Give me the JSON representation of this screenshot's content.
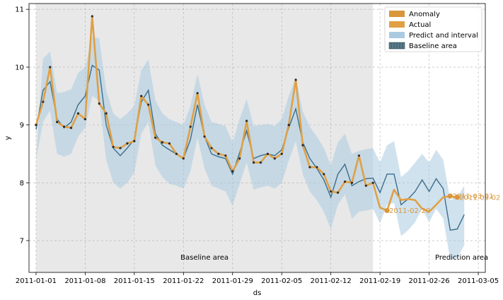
{
  "chart_data": {
    "type": "line",
    "xlabel": "ds",
    "ylabel": "y",
    "x_start": "2011-01-01",
    "xlim": [
      "2010-12-31",
      "2011-03-06"
    ],
    "ylim": [
      6.45,
      11.1
    ],
    "x_ticks": [
      "2011-01-01",
      "2011-01-08",
      "2011-01-15",
      "2011-01-22",
      "2011-01-29",
      "2011-02-05",
      "2011-02-12",
      "2011-02-19",
      "2011-02-26",
      "2011-03-05"
    ],
    "y_ticks": [
      7,
      8,
      9,
      10,
      11
    ],
    "grid": true,
    "legend_position": "top-right",
    "legend": [
      "Anomaly",
      "Actual",
      "Predict and interval",
      "Baseline area"
    ],
    "colors": {
      "anomaly": "#d9963a",
      "actual": "#e0a044",
      "predict": "#3b6f8a",
      "interval": "#a9cbe0",
      "baseline": "#e8e8e8",
      "point": "#2b2b2b"
    },
    "baseline_area": {
      "start": "2011-01-01",
      "end": "2011-02-18",
      "label": "Baseline area"
    },
    "prediction_area": {
      "label": "Prediction area"
    },
    "series": [
      {
        "name": "Actual",
        "x": [
          "2011-01-01",
          "2011-01-02",
          "2011-01-03",
          "2011-01-04",
          "2011-01-05",
          "2011-01-06",
          "2011-01-07",
          "2011-01-08",
          "2011-01-09",
          "2011-01-10",
          "2011-01-11",
          "2011-01-12",
          "2011-01-13",
          "2011-01-14",
          "2011-01-15",
          "2011-01-16",
          "2011-01-17",
          "2011-01-18",
          "2011-01-19",
          "2011-01-20",
          "2011-01-21",
          "2011-01-22",
          "2011-01-23",
          "2011-01-24",
          "2011-01-25",
          "2011-01-26",
          "2011-01-27",
          "2011-01-28",
          "2011-01-29",
          "2011-01-30",
          "2011-01-31",
          "2011-02-01",
          "2011-02-02",
          "2011-02-03",
          "2011-02-04",
          "2011-02-05",
          "2011-02-06",
          "2011-02-07",
          "2011-02-08",
          "2011-02-09",
          "2011-02-10",
          "2011-02-11",
          "2011-02-12",
          "2011-02-13",
          "2011-02-14",
          "2011-02-15",
          "2011-02-16",
          "2011-02-17",
          "2011-02-18",
          "2011-02-19",
          "2011-02-20",
          "2011-02-21",
          "2011-02-22",
          "2011-02-23",
          "2011-02-24",
          "2011-02-25",
          "2011-02-26",
          "2011-02-27",
          "2011-02-28",
          "2011-03-01",
          "2011-03-02"
        ],
        "values": [
          9.0,
          9.4,
          10.0,
          9.05,
          8.97,
          8.95,
          9.2,
          9.1,
          10.88,
          9.37,
          9.2,
          8.62,
          8.6,
          8.68,
          8.72,
          9.5,
          9.35,
          8.78,
          8.7,
          8.68,
          8.5,
          8.42,
          8.97,
          9.55,
          8.8,
          8.6,
          8.5,
          8.47,
          8.2,
          8.42,
          9.07,
          8.35,
          8.35,
          8.5,
          8.42,
          8.5,
          9.0,
          9.78,
          8.65,
          8.27,
          8.27,
          8.15,
          7.85,
          7.83,
          8.02,
          8.0,
          8.47,
          7.95,
          8.0,
          7.57,
          7.52,
          7.88,
          7.7,
          7.72,
          7.7,
          7.55,
          7.5,
          7.62,
          7.75,
          7.77,
          7.75
        ]
      },
      {
        "name": "Predict and interval",
        "x": [
          "2011-01-01",
          "2011-01-02",
          "2011-01-03",
          "2011-01-04",
          "2011-01-05",
          "2011-01-06",
          "2011-01-07",
          "2011-01-08",
          "2011-01-09",
          "2011-01-10",
          "2011-01-11",
          "2011-01-12",
          "2011-01-13",
          "2011-01-14",
          "2011-01-15",
          "2011-01-16",
          "2011-01-17",
          "2011-01-18",
          "2011-01-19",
          "2011-01-20",
          "2011-01-21",
          "2011-01-22",
          "2011-01-23",
          "2011-01-24",
          "2011-01-25",
          "2011-01-26",
          "2011-01-27",
          "2011-01-28",
          "2011-01-29",
          "2011-01-30",
          "2011-01-31",
          "2011-02-01",
          "2011-02-02",
          "2011-02-03",
          "2011-02-04",
          "2011-02-05",
          "2011-02-06",
          "2011-02-07",
          "2011-02-08",
          "2011-02-09",
          "2011-02-10",
          "2011-02-11",
          "2011-02-12",
          "2011-02-13",
          "2011-02-14",
          "2011-02-15",
          "2011-02-16",
          "2011-02-17",
          "2011-02-18",
          "2011-02-19",
          "2011-02-20",
          "2011-02-21",
          "2011-02-22",
          "2011-02-23",
          "2011-02-24",
          "2011-02-25",
          "2011-02-26",
          "2011-02-27",
          "2011-02-28",
          "2011-03-01",
          "2011-03-02",
          "2011-03-03"
        ],
        "values": [
          8.92,
          9.6,
          9.75,
          9.1,
          8.95,
          9.05,
          9.35,
          9.5,
          10.03,
          9.95,
          9.0,
          8.6,
          8.47,
          8.6,
          8.75,
          9.4,
          9.6,
          8.85,
          8.65,
          8.57,
          8.5,
          8.42,
          8.75,
          9.35,
          8.8,
          8.5,
          8.45,
          8.42,
          8.15,
          8.52,
          8.9,
          8.42,
          8.47,
          8.5,
          8.47,
          8.57,
          8.95,
          9.28,
          8.7,
          8.42,
          8.25,
          8.05,
          7.75,
          8.15,
          8.32,
          7.95,
          8.02,
          8.07,
          8.08,
          7.83,
          8.15,
          8.15,
          7.62,
          7.72,
          7.85,
          8.05,
          7.85,
          8.07,
          7.9,
          7.18,
          7.2,
          7.45
        ],
        "upper": [
          8.4,
          10.15,
          10.27,
          9.55,
          9.57,
          9.62,
          9.9,
          10.0,
          10.53,
          10.5,
          9.6,
          9.2,
          9.1,
          9.2,
          9.33,
          9.95,
          10.13,
          9.43,
          9.2,
          9.1,
          9.05,
          9.0,
          9.33,
          9.88,
          9.35,
          9.05,
          9.02,
          8.98,
          8.7,
          9.1,
          9.45,
          8.98,
          9.0,
          9.02,
          8.98,
          9.1,
          9.5,
          9.82,
          9.23,
          8.97,
          8.8,
          8.6,
          8.3,
          8.7,
          8.85,
          8.5,
          8.55,
          8.58,
          8.6,
          8.35,
          8.65,
          8.72,
          8.1,
          8.2,
          8.35,
          8.5,
          8.35,
          8.57,
          8.4,
          7.7,
          7.75,
          7.95
        ],
        "lower": [
          8.4,
          9.05,
          9.25,
          8.5,
          8.45,
          8.5,
          8.8,
          8.95,
          9.5,
          9.42,
          8.4,
          8.0,
          7.9,
          8.0,
          8.18,
          8.85,
          9.05,
          8.3,
          8.1,
          7.98,
          7.95,
          7.9,
          8.2,
          8.78,
          8.25,
          7.95,
          7.9,
          7.85,
          7.6,
          7.98,
          8.35,
          7.88,
          7.92,
          7.95,
          7.9,
          8.0,
          8.38,
          8.72,
          8.15,
          7.85,
          7.7,
          7.5,
          7.2,
          7.62,
          7.8,
          7.38,
          7.5,
          7.52,
          7.55,
          7.3,
          7.62,
          7.65,
          7.08,
          7.18,
          7.32,
          7.55,
          7.32,
          7.55,
          7.38,
          6.67,
          6.7,
          6.92
        ]
      },
      {
        "name": "Anomaly",
        "x": [
          "2011-02-20",
          "2011-03-01",
          "2011-03-02"
        ],
        "values": [
          7.52,
          7.77,
          7.75
        ],
        "labels": [
          "2011-02-20",
          "2011-03-01",
          "2011-03-02"
        ]
      }
    ]
  }
}
